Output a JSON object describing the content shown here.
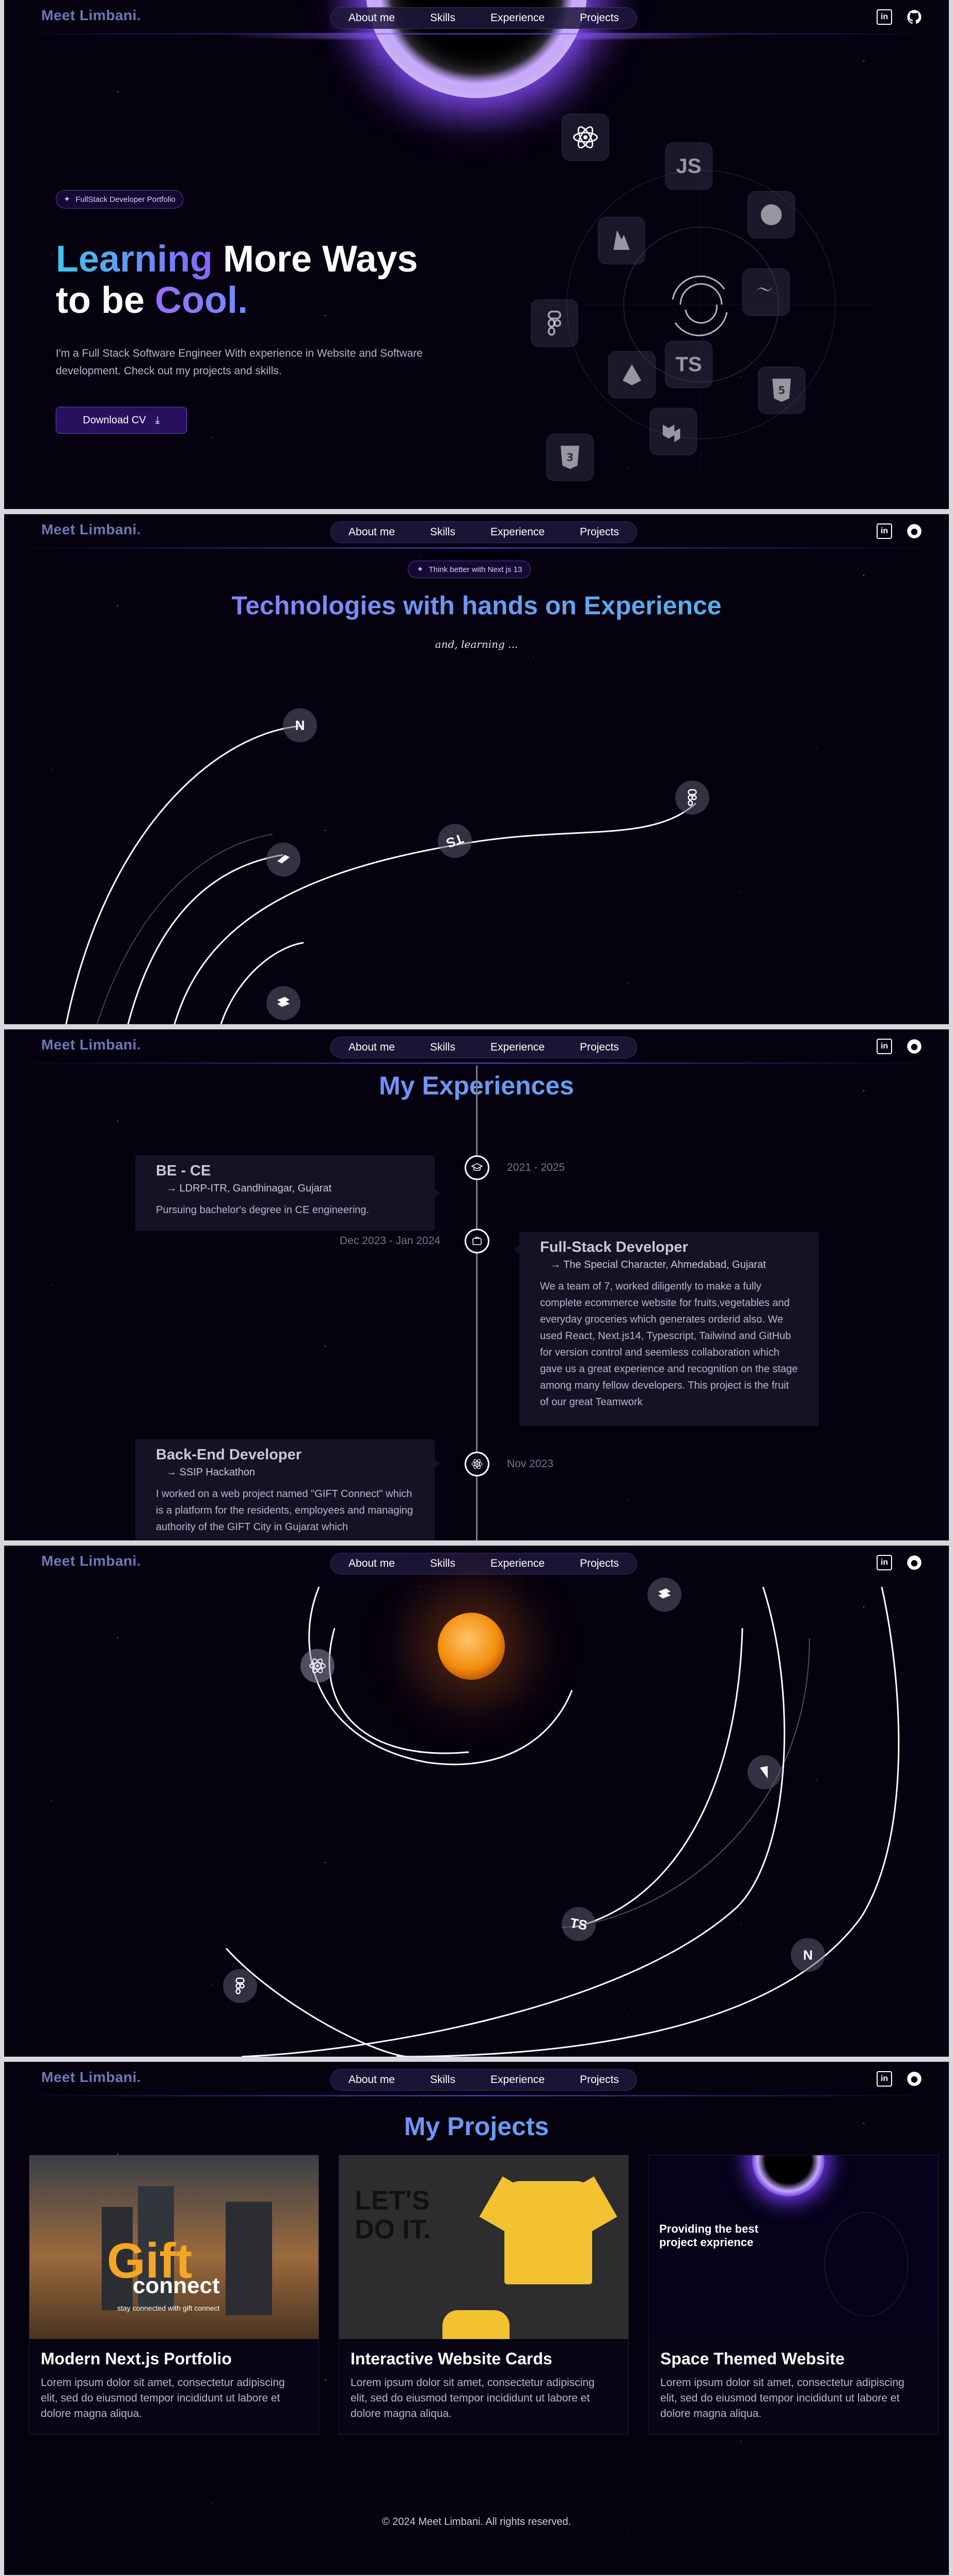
{
  "nav": {
    "logo": "Meet Limbani",
    "logo_dot": ".",
    "items": [
      {
        "label": "About me"
      },
      {
        "label": "Skills"
      },
      {
        "label": "Experience"
      },
      {
        "label": "Projects"
      }
    ],
    "linkedin": "in"
  },
  "hero": {
    "badge": "FullStack Developer Portfolio",
    "title_a": "Learning",
    "title_b": " More Ways",
    "title_c": "to be ",
    "title_d": "Cool.",
    "description": "I'm a Full Stack Software Engineer With experience in Website and Software development. Check out my projects and skills.",
    "cv_button": "Download CV",
    "tiles": {
      "js": "JS",
      "ts": "TS"
    }
  },
  "skills": {
    "badge": "Think better with Next js 13",
    "title": "Technologies with hands on Experience",
    "subtitle": "and, learning ...",
    "ts": "TS",
    "next": "N"
  },
  "experience": {
    "title": "My Experiences",
    "items": [
      {
        "title": "BE - CE",
        "org": "→ LDRP-ITR, Gandhinagar, Gujarat",
        "text": "Pursuing bachelor's degree in CE engineering.",
        "date": "2021 - 2025"
      },
      {
        "title": "Full-Stack Developer",
        "org": "→ The Special Character, Ahmedabad, Gujarat",
        "text": "We a team of 7, worked diligently to make a fully complete ecommerce website for fruits,vegetables and everyday groceries which generates orderid also. We used React, Next.js14, Typescript, Tailwind and GitHub for version control and seemless collaboration which gave us a great experience and recognition on the stage among many fellow developers. This project is the fruit of our great Teamwork",
        "date": "Dec 2023 - Jan 2024"
      },
      {
        "title": "Back-End Developer",
        "org": "→ SSIP Hackathon",
        "text": "I worked on a web project named \"GIFT Connect\" which is a platform for the residents, employees and managing authority of the GIFT City in Gujarat which",
        "date": "Nov 2023"
      }
    ]
  },
  "solar": {
    "ts": "TS",
    "next": "N"
  },
  "projects": {
    "title": "My Projects",
    "items": [
      {
        "title": "Modern Next.js Portfolio",
        "text": "Lorem ipsum dolor sit amet, consectetur adipiscing elit, sed do eiusmod tempor incididunt ut labore et dolore magna aliqua.",
        "shot_big": "Gift",
        "shot_small": "connect",
        "shot_sub": "stay connected with gift connect"
      },
      {
        "title": "Interactive Website Cards",
        "text": "Lorem ipsum dolor sit amet, consectetur adipiscing elit, sed do eiusmod tempor incididunt ut labore et dolore magna aliqua.",
        "shot_big": "LET'S DO IT."
      },
      {
        "title": "Space Themed Website",
        "text": "Lorem ipsum dolor sit amet, consectetur adipiscing elit, sed do eiusmod tempor incididunt ut labore et dolore magna aliqua.",
        "shot_big": "Providing the best",
        "shot_small": "project exprience"
      }
    ],
    "footer": "© 2024 Meet Limbani. All rights reserved."
  },
  "colors": {
    "accent": "#8a63ff",
    "cyan": "#3ec7e8",
    "bg": "#05010f"
  }
}
